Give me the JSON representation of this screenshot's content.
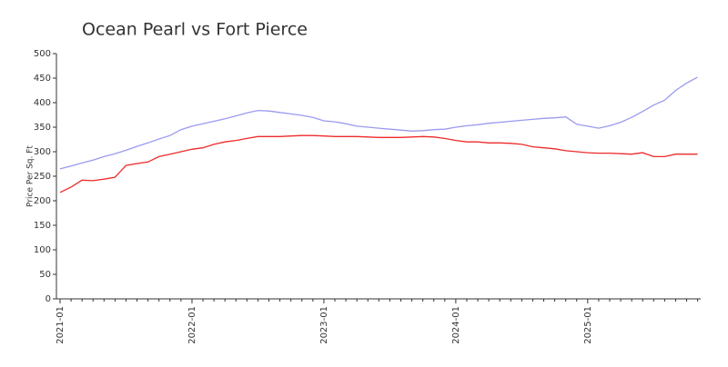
{
  "chart_data": {
    "type": "line",
    "title": "Ocean Pearl vs Fort Pierce",
    "y_label": "Price Per Sq. Ft",
    "categories": [
      "2021-01",
      null,
      null,
      null,
      null,
      null,
      null,
      null,
      null,
      null,
      null,
      null,
      "2022-01",
      null,
      null,
      null,
      null,
      null,
      null,
      null,
      null,
      null,
      null,
      null,
      "2023-01",
      null,
      null,
      null,
      null,
      null,
      null,
      null,
      null,
      null,
      null,
      null,
      "2024-01",
      null,
      null,
      null,
      null,
      null,
      null,
      null,
      null,
      null,
      null,
      null,
      "2025-01",
      null,
      null,
      null,
      null,
      null,
      null,
      null,
      null,
      null,
      null
    ],
    "series": [
      {
        "color": "#9a9af0",
        "values": [
          265,
          271,
          277,
          283,
          290,
          296,
          303,
          311,
          318,
          326,
          333,
          345,
          352,
          357,
          362,
          367,
          373,
          379,
          384,
          383,
          380,
          377,
          374,
          370,
          363,
          361,
          357,
          352,
          350,
          348,
          346,
          344,
          342,
          343,
          345,
          346,
          350,
          353,
          355,
          358,
          360,
          362,
          364,
          366,
          368,
          369,
          371,
          356,
          352,
          348,
          353,
          360,
          370,
          382,
          395,
          405,
          425,
          440,
          452
        ]
      },
      {
        "color": "#ee2a2a",
        "values": [
          217,
          228,
          242,
          241,
          244,
          248,
          272,
          276,
          279,
          290,
          295,
          300,
          305,
          308,
          315,
          320,
          323,
          327,
          331,
          331,
          331,
          332,
          333,
          333,
          332,
          331,
          331,
          331,
          330,
          329,
          329,
          329,
          330,
          331,
          330,
          327,
          323,
          320,
          320,
          318,
          318,
          317,
          315,
          310,
          308,
          306,
          302,
          300,
          298,
          297,
          297,
          296,
          295,
          298,
          290,
          290,
          295,
          295,
          295
        ]
      }
    ],
    "ylim": [
      0,
      500
    ],
    "yticks": [
      0,
      50,
      100,
      150,
      200,
      250,
      300,
      350,
      400,
      450,
      500
    ]
  }
}
